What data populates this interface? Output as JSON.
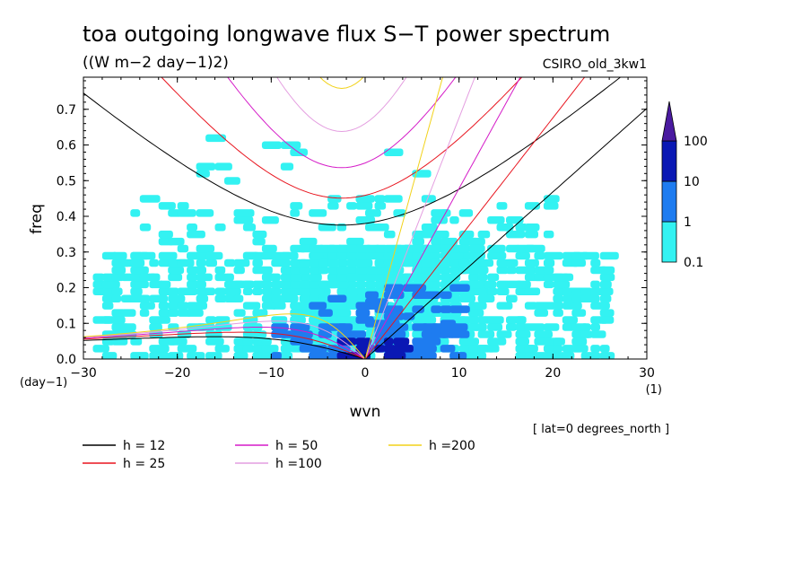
{
  "chart_data": {
    "type": "heatmap",
    "title": "toa outgoing longwave flux S−T power spectrum",
    "subtitle": "((W m−2 day−1)2)",
    "model_label": "CSIRO_old_3kw1",
    "xlabel": "wvn",
    "ylabel": "freq",
    "x_unit": "(1)",
    "y_unit": "(day−1)",
    "note": "[ lat=0 degrees_north ]",
    "xlim": [
      -30,
      30
    ],
    "ylim": [
      0,
      0.79
    ],
    "x_ticks": [
      -30,
      -20,
      -10,
      0,
      10,
      20,
      30
    ],
    "x_tick_labels": [
      "−30",
      "−20",
      "−10",
      "0",
      "10",
      "20",
      "30"
    ],
    "y_ticks": [
      0,
      0.1,
      0.2,
      0.3,
      0.4,
      0.5,
      0.6,
      0.7
    ],
    "y_tick_labels": [
      "0.0",
      "0.1",
      "0.2",
      "0.3",
      "0.4",
      "0.5",
      "0.6",
      "0.7"
    ],
    "colorbar": {
      "levels": [
        "0.1",
        "1",
        "10",
        "100"
      ],
      "colors": [
        "#33f2f2",
        "#1e7cf0",
        "#0a18b4",
        "#4a1aa0"
      ]
    },
    "dispersion_curves": [
      {
        "name": "h = 12",
        "h": 12,
        "color": "#000000"
      },
      {
        "name": "h = 25",
        "h": 25,
        "color": "#e8141e"
      },
      {
        "name": "h = 50",
        "h": 50,
        "color": "#d51cc8"
      },
      {
        "name": "h =100",
        "h": 100,
        "color": "#e49ee0"
      },
      {
        "name": "h =200",
        "h": 200,
        "color": "#f2d21a"
      }
    ],
    "spectrum_regions": [
      {
        "level": 0,
        "wn_min": -29,
        "wn_max": 26,
        "f_min": 0.0,
        "f_max": 0.28,
        "density": 0.55
      },
      {
        "level": 0,
        "wn_min": -25,
        "wn_max": 20,
        "f_min": 0.28,
        "f_max": 0.45,
        "density": 0.22
      },
      {
        "level": 0,
        "wn_min": -8,
        "wn_max": 12,
        "f_min": 0.08,
        "f_max": 0.32,
        "density": 0.85
      },
      {
        "level": 0,
        "wn_min": -20,
        "wn_max": 10,
        "f_min": 0.45,
        "f_max": 0.63,
        "density": 0.05
      },
      {
        "level": 1,
        "wn_min": -10,
        "wn_max": 10,
        "f_min": 0.0,
        "f_max": 0.1,
        "density": 0.6
      },
      {
        "level": 1,
        "wn_min": 0,
        "wn_max": 10,
        "f_min": 0.05,
        "f_max": 0.2,
        "density": 0.4
      },
      {
        "level": 1,
        "wn_min": -6,
        "wn_max": 3,
        "f_min": 0.1,
        "f_max": 0.18,
        "density": 0.25
      },
      {
        "level": 2,
        "wn_min": -3,
        "wn_max": 4,
        "f_min": 0.0,
        "f_max": 0.05,
        "density": 0.55
      }
    ]
  }
}
